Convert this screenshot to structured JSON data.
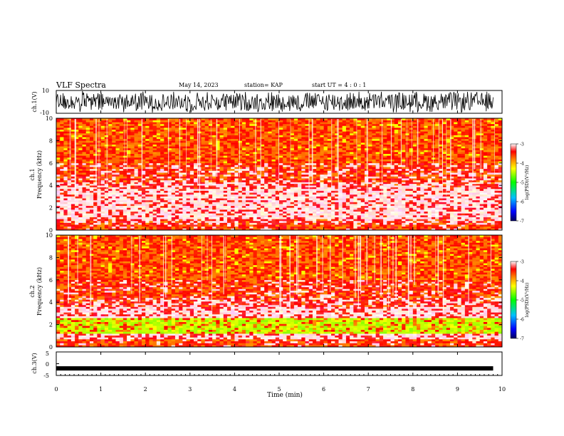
{
  "header": {
    "title": "VLF Spectra",
    "date": "May 14, 2023",
    "station": "station= KAP",
    "start": "start UT =  4 : 0  : 1"
  },
  "panels": {
    "ch1_wave_label": "ch.1(V)",
    "ch1_spec_label": "ch.1 Frequency (kHz)",
    "ch2_spec_label": "ch.2 Frequency (kHz)",
    "ch3_wave_label": "ch.3(V)",
    "xlabel": "Time (min)",
    "colorbar_label": "log(PSD)(V²/Hz)"
  },
  "chart_data": [
    {
      "type": "line",
      "name": "ch1-waveform",
      "ylabel": "ch.1(V)",
      "ylim": [
        -10,
        10
      ],
      "yticks": [
        "10",
        "-10"
      ],
      "xlim": [
        0,
        10
      ],
      "data_extent_min": 9.8,
      "description_level": "noise filling nearly full range"
    },
    {
      "type": "heatmap",
      "name": "ch1-spectrogram",
      "ylabel": "Frequency (kHz)",
      "ylim": [
        0,
        10
      ],
      "yticks": [
        "0",
        "2",
        "4",
        "6",
        "8",
        "10"
      ],
      "xlim": [
        0,
        10
      ],
      "bands": [
        {
          "from_khz": 0.0,
          "to_khz": 0.5,
          "level": -4.0
        },
        {
          "from_khz": 0.5,
          "to_khz": 1.0,
          "level": -3.8
        },
        {
          "from_khz": 1.0,
          "to_khz": 3.7,
          "level": -3.4
        },
        {
          "from_khz": 3.7,
          "to_khz": 4.3,
          "level": -3.7
        },
        {
          "from_khz": 4.3,
          "to_khz": 6.0,
          "level": -3.9
        },
        {
          "from_khz": 6.0,
          "to_khz": 10.0,
          "level": -4.3
        }
      ],
      "colorbar": {
        "min": -7,
        "max": -3,
        "ticks": [
          "-3",
          "-4",
          "-5",
          "-6",
          "-7"
        ],
        "label": "log(PSD)(V²/Hz)"
      }
    },
    {
      "type": "heatmap",
      "name": "ch2-spectrogram",
      "ylabel": "Frequency (kHz)",
      "ylim": [
        0,
        10
      ],
      "yticks": [
        "0",
        "2",
        "4",
        "6",
        "8",
        "10"
      ],
      "xlim": [
        0,
        10
      ],
      "bands": [
        {
          "from_khz": 0.0,
          "to_khz": 0.7,
          "level": -4.0
        },
        {
          "from_khz": 0.7,
          "to_khz": 1.2,
          "level": -3.6
        },
        {
          "from_khz": 1.2,
          "to_khz": 2.6,
          "level": -4.6
        },
        {
          "from_khz": 2.6,
          "to_khz": 3.6,
          "level": -3.5
        },
        {
          "from_khz": 3.6,
          "to_khz": 4.4,
          "level": -3.8
        },
        {
          "from_khz": 4.4,
          "to_khz": 6.0,
          "level": -3.95
        },
        {
          "from_khz": 6.0,
          "to_khz": 10.0,
          "level": -4.3
        }
      ],
      "colorbar": {
        "min": -7,
        "max": -3,
        "ticks": [
          "-3",
          "-4",
          "-5",
          "-6",
          "-7"
        ],
        "label": "log(PSD)(V²/Hz)"
      }
    },
    {
      "type": "line",
      "name": "ch3-waveform",
      "ylabel": "ch.3(V)",
      "ylim": [
        -5,
        5
      ],
      "yticks": [
        "5",
        "0",
        "-5"
      ],
      "xlim": [
        0,
        10
      ],
      "xticks": [
        "0",
        "1",
        "2",
        "3",
        "4",
        "5",
        "6",
        "7",
        "8",
        "9",
        "10"
      ],
      "xlabel": "Time (min)",
      "level_v": -2
    }
  ]
}
